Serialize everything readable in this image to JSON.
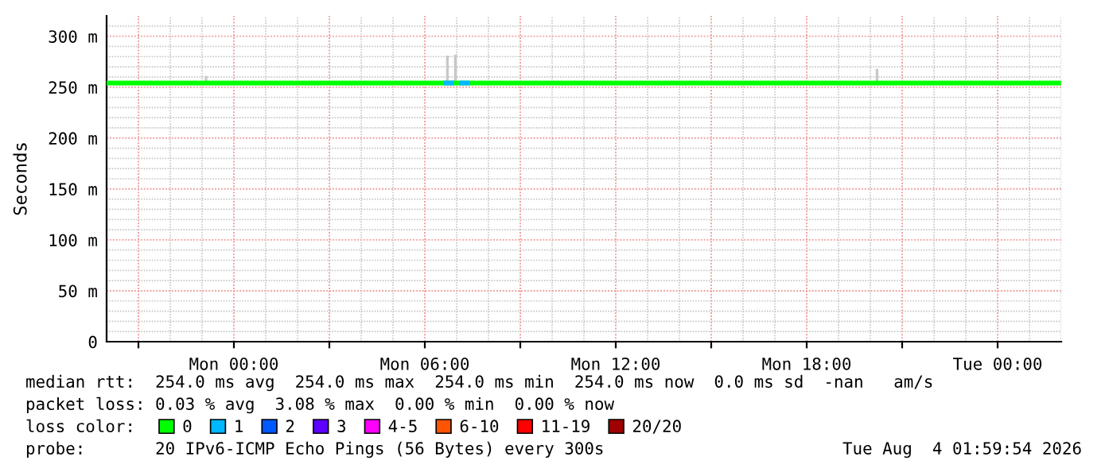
{
  "chart_data": {
    "type": "step",
    "ylabel": "Seconds",
    "legend_title": "loss color:",
    "x": [
      "2026-08-02T20:00",
      "2026-08-03T06:40",
      "2026-08-03T06:50",
      "2026-08-03T07:10",
      "2026-08-03T07:20",
      "2026-08-04T01:55"
    ],
    "series": [
      {
        "name": "0",
        "color": "#00ff00",
        "values": [
          254,
          null,
          254,
          null,
          254,
          254
        ]
      },
      {
        "name": "1",
        "color": "#00b8ff",
        "values": [
          null,
          254,
          null,
          254,
          null,
          null
        ]
      },
      {
        "name": "2",
        "color": "#0059ff",
        "values": [
          null,
          null,
          null,
          null,
          null,
          null
        ]
      },
      {
        "name": "3",
        "color": "#5e00ff",
        "values": [
          null,
          null,
          null,
          null,
          null,
          null
        ]
      },
      {
        "name": "4-5",
        "color": "#ff00ff",
        "values": [
          null,
          null,
          null,
          null,
          null,
          null
        ]
      },
      {
        "name": "6-10",
        "color": "#ff5500",
        "values": [
          null,
          null,
          null,
          null,
          null,
          null
        ]
      },
      {
        "name": "11-19",
        "color": "#ff0000",
        "values": [
          null,
          null,
          null,
          null,
          null,
          null
        ]
      },
      {
        "name": "20/20",
        "color": "#a10000",
        "values": [
          null,
          null,
          null,
          null,
          null,
          null
        ]
      },
      {
        "type": "bar",
        "color": "#c8c8c8",
        "x": [
          "2026-08-02T23:05",
          "2026-08-03T06:40",
          "2026-08-03T06:55",
          "2026-08-03T20:10"
        ],
        "base": [
          254,
          254,
          254,
          254
        ],
        "values": [
          7,
          27,
          28,
          14
        ]
      }
    ],
    "xlim": [
      "2026-08-02T20:00",
      "2026-08-04T02:00"
    ],
    "xticks": [
      {
        "value": "2026-08-02T21:00",
        "label": null
      },
      {
        "value": "2026-08-03T00:00",
        "label": "Mon 00:00"
      },
      {
        "value": "2026-08-03T03:00",
        "label": null
      },
      {
        "value": "2026-08-03T06:00",
        "label": "Mon 06:00"
      },
      {
        "value": "2026-08-03T09:00",
        "label": null
      },
      {
        "value": "2026-08-03T12:00",
        "label": "Mon 12:00"
      },
      {
        "value": "2026-08-03T15:00",
        "label": null
      },
      {
        "value": "2026-08-03T18:00",
        "label": "Mon 18:00"
      },
      {
        "value": "2026-08-03T21:00",
        "label": null
      },
      {
        "value": "2026-08-04T00:00",
        "label": "Tue 00:00"
      }
    ],
    "ylim": [
      0,
      320
    ],
    "yticks": [
      0,
      {
        "value": 50,
        "label": "50 m"
      },
      {
        "value": 100,
        "label": "100 m"
      },
      {
        "value": 150,
        "label": "150 m"
      },
      {
        "value": 200,
        "label": "200 m"
      },
      {
        "value": 250,
        "label": "250 m"
      },
      {
        "value": 300,
        "label": "300 m"
      }
    ],
    "grid": true,
    "legend": "bottom",
    "annotations": [
      "median rtt:  254.0 ms avg  254.0 ms max  254.0 ms min  254.0 ms now  0.0 ms sd  -nan   am/s",
      "packet loss: 0.03 % avg  3.08 % max  0.00 % min  0.00 % now",
      "probe:       20 IPv6-ICMP Echo Pings (56 Bytes) every 300s",
      "Tue Aug  4 01:59:54 2026"
    ]
  }
}
